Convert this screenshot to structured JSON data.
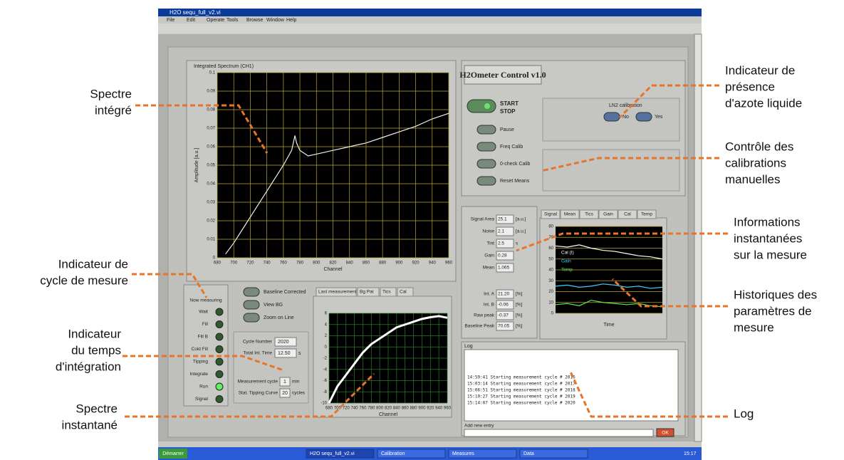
{
  "window": {
    "title": "H2O sequ_full_v2.vi",
    "menu": [
      "File",
      "Edit",
      "Operate",
      "Tools",
      "Browse",
      "Window",
      "Help"
    ]
  },
  "integrated_spectrum": {
    "type": "line",
    "title": "Integrated Spectrum (CH1)",
    "x_label": "Channel",
    "y_label": "Amplitude [a.u.]",
    "xlim": [
      680,
      960
    ],
    "xticks": [
      680,
      700,
      720,
      740,
      760,
      780,
      800,
      820,
      840,
      860,
      880,
      900,
      920,
      940,
      960
    ],
    "ylim": [
      0,
      0.1
    ],
    "yticks": [
      0,
      0.01,
      0.02,
      0.03,
      0.04,
      0.05,
      0.06,
      0.07,
      0.08,
      0.09,
      0.1
    ],
    "x": [
      690,
      700,
      710,
      720,
      730,
      740,
      750,
      760,
      770,
      774,
      776,
      780,
      790,
      800,
      820,
      840,
      860,
      880,
      900,
      920,
      940,
      960
    ],
    "y": [
      0.002,
      0.008,
      0.015,
      0.022,
      0.029,
      0.036,
      0.043,
      0.05,
      0.058,
      0.066,
      0.062,
      0.058,
      0.055,
      0.056,
      0.058,
      0.06,
      0.062,
      0.065,
      0.068,
      0.071,
      0.075,
      0.078
    ]
  },
  "control": {
    "title": "H2Ometer Control v1.0",
    "start": "START",
    "stop": "STOP",
    "buttons": [
      "Pause",
      "Freq Calib",
      "0-check Calib",
      "Reset Means"
    ],
    "ln2_label": "LN2 calibration",
    "ln2_options": [
      "No",
      "Yes"
    ]
  },
  "cycle": {
    "header": "Now measuring",
    "states": [
      "Wait",
      "Fill",
      "Fill B",
      "Cold Fill",
      "Tipping",
      "Integrate",
      "Run",
      "Signal"
    ],
    "active": 6
  },
  "options": [
    "Baseline Corrected",
    "View BG",
    "Zoom on Line"
  ],
  "fields": [
    {
      "label": "Cycle Number",
      "value": "2020"
    },
    {
      "label": "Total Int. Time",
      "value": "12.50",
      "unit": "s"
    }
  ],
  "settings": [
    {
      "label": "Measurement cycle",
      "value": "1",
      "unit": "min"
    },
    {
      "label": "Stat. Tipping Curve",
      "value": "20",
      "unit": "cycles"
    }
  ],
  "instant_spectrum": {
    "type": "line",
    "tabs": [
      "Last measurement",
      "Bg Pat",
      "Tics",
      "Cal"
    ],
    "x_label": "Channel",
    "xlim": [
      680,
      960
    ],
    "xticks": [
      680,
      700,
      720,
      740,
      760,
      780,
      800,
      820,
      840,
      860,
      880,
      900,
      920,
      940,
      960
    ],
    "ylim": [
      -10,
      6
    ],
    "yticks": [
      -10,
      -8,
      -6,
      -4,
      -2,
      0,
      2,
      4,
      6
    ],
    "x": [
      680,
      700,
      720,
      740,
      760,
      780,
      800,
      820,
      840,
      860,
      880,
      900,
      920,
      940,
      960
    ],
    "y": [
      -10,
      -7,
      -5,
      -3,
      -1,
      0.5,
      1.5,
      2.5,
      3.5,
      4,
      4.5,
      5,
      5.3,
      5.5,
      5.2
    ]
  },
  "info": [
    {
      "label": "Signal Area",
      "value": "25.1",
      "unit": "[a.u.]"
    },
    {
      "label": "Noise",
      "value": "2.1",
      "unit": "[a.u.]"
    },
    {
      "label": "Tint",
      "value": "2.5",
      "unit": "s"
    },
    {
      "label": "Gain",
      "value": "0.28"
    },
    {
      "label": "Mean",
      "value": "1.065"
    },
    {
      "label": "Int. A",
      "value": "21.20",
      "unit": "[%]"
    },
    {
      "label": "Int. B",
      "value": "-0.06",
      "unit": "[%]"
    },
    {
      "label": "Raw peak",
      "value": "-0.37",
      "unit": "[%]"
    },
    {
      "label": "Baseline Peak",
      "value": "70.05",
      "unit": "[%]"
    }
  ],
  "history": {
    "type": "line",
    "tabs": [
      "Signal",
      "Mean",
      "Tics",
      "Gain",
      "Cal",
      "Temp"
    ],
    "x_label": "Time",
    "ylim": [
      0,
      80
    ],
    "yticks": [
      0,
      10,
      20,
      30,
      40,
      50,
      60,
      70,
      80
    ],
    "series": [
      {
        "name": "Cal (I)",
        "color": "#ffffff",
        "values": [
          62,
          61,
          63,
          60,
          58,
          57,
          55,
          53,
          52,
          50
        ]
      },
      {
        "name": "Gain",
        "color": "#3ad0ff",
        "values": [
          25,
          26,
          24,
          25,
          27,
          26,
          24,
          25,
          23,
          24
        ]
      },
      {
        "name": "Temp",
        "color": "#5ce65c",
        "values": [
          8,
          9,
          7,
          12,
          10,
          9,
          8,
          9,
          7,
          6
        ]
      }
    ]
  },
  "log": {
    "title": "Log",
    "lines": [
      "14:59:41 Starting measurement cycle # 2016",
      "15:03:14 Starting measurement cycle # 2017",
      "15:06:51 Starting measurement cycle # 2018",
      "15:10:27 Starting measurement cycle # 2019",
      "15:14:07 Starting measurement cycle # 2020"
    ],
    "entry_label": "Add new entry",
    "button": "OK"
  },
  "taskbar": {
    "start": "Démarrer",
    "items": [
      "H2O sequ_full_v2.vi",
      "Calibration",
      "Measures",
      "Data"
    ],
    "clock": "15:17"
  },
  "annotations": [
    {
      "lines": [
        "Spectre",
        "intégré"
      ]
    },
    {
      "lines": [
        "Indicateur de",
        "cycle de mesure"
      ]
    },
    {
      "lines": [
        "Indicateur",
        "du temps",
        "d'intégration"
      ]
    },
    {
      "lines": [
        "Spectre",
        "instantané"
      ]
    },
    {
      "lines": [
        "Indicateur de",
        "présence",
        "d'azote liquide"
      ]
    },
    {
      "lines": [
        "Contrôle des",
        "calibrations",
        "manuelles"
      ]
    },
    {
      "lines": [
        "Informations",
        "instantanées",
        "sur la mesure"
      ]
    },
    {
      "lines": [
        "Historiques des",
        "paramètres de",
        "mesure"
      ]
    },
    {
      "lines": [
        "Log"
      ]
    }
  ]
}
